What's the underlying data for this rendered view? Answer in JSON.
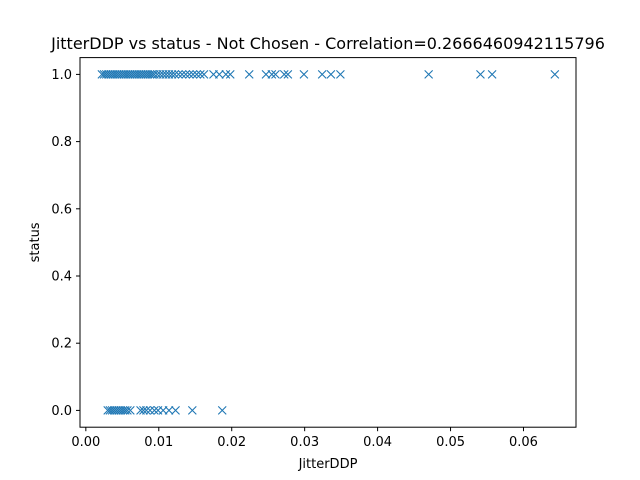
{
  "chart_data": {
    "type": "scatter",
    "title": "JitterDDP vs status - Not Chosen - Correlation=0.2666460942115796",
    "xlabel": "JitterDDP",
    "ylabel": "status",
    "xlim": [
      -0.0008,
      0.0672
    ],
    "ylim": [
      -0.05,
      1.05
    ],
    "xticks": [
      0.0,
      0.01,
      0.02,
      0.03,
      0.04,
      0.05,
      0.06
    ],
    "xtick_labels": [
      "0.00",
      "0.01",
      "0.02",
      "0.03",
      "0.04",
      "0.05",
      "0.06"
    ],
    "yticks": [
      0.0,
      0.2,
      0.4,
      0.6,
      0.8,
      1.0
    ],
    "ytick_labels": [
      "0.0",
      "0.2",
      "0.4",
      "0.6",
      "0.8",
      "1.0"
    ],
    "marker": "x",
    "color": "#1f77b4",
    "grid": false,
    "series": [
      {
        "name": "",
        "points": [
          [
            0.0022,
            1
          ],
          [
            0.0025,
            1
          ],
          [
            0.0028,
            1
          ],
          [
            0.0031,
            1
          ],
          [
            0.0034,
            1
          ],
          [
            0.0037,
            1
          ],
          [
            0.004,
            1
          ],
          [
            0.0043,
            1
          ],
          [
            0.0046,
            1
          ],
          [
            0.0049,
            1
          ],
          [
            0.0052,
            1
          ],
          [
            0.0055,
            1
          ],
          [
            0.0058,
            1
          ],
          [
            0.0061,
            1
          ],
          [
            0.0064,
            1
          ],
          [
            0.0067,
            1
          ],
          [
            0.007,
            1
          ],
          [
            0.0073,
            1
          ],
          [
            0.0076,
            1
          ],
          [
            0.0079,
            1
          ],
          [
            0.0082,
            1
          ],
          [
            0.0085,
            1
          ],
          [
            0.0088,
            1
          ],
          [
            0.0091,
            1
          ],
          [
            0.0094,
            1
          ],
          [
            0.0098,
            1
          ],
          [
            0.0102,
            1
          ],
          [
            0.0106,
            1
          ],
          [
            0.011,
            1
          ],
          [
            0.0114,
            1
          ],
          [
            0.0118,
            1
          ],
          [
            0.0122,
            1
          ],
          [
            0.0127,
            1
          ],
          [
            0.0132,
            1
          ],
          [
            0.0137,
            1
          ],
          [
            0.0142,
            1
          ],
          [
            0.0147,
            1
          ],
          [
            0.0152,
            1
          ],
          [
            0.0157,
            1
          ],
          [
            0.0162,
            1
          ],
          [
            0.0175,
            1
          ],
          [
            0.0183,
            1
          ],
          [
            0.0192,
            1
          ],
          [
            0.0198,
            1
          ],
          [
            0.0224,
            1
          ],
          [
            0.0247,
            1
          ],
          [
            0.0255,
            1
          ],
          [
            0.026,
            1
          ],
          [
            0.0272,
            1
          ],
          [
            0.0277,
            1
          ],
          [
            0.0299,
            1
          ],
          [
            0.0324,
            1
          ],
          [
            0.0336,
            1
          ],
          [
            0.0349,
            1
          ],
          [
            0.047,
            1
          ],
          [
            0.0541,
            1
          ],
          [
            0.0557,
            1
          ],
          [
            0.0643,
            1
          ],
          [
            0.003,
            0
          ],
          [
            0.0033,
            0
          ],
          [
            0.0036,
            0
          ],
          [
            0.0039,
            0
          ],
          [
            0.0042,
            0
          ],
          [
            0.0045,
            0
          ],
          [
            0.0048,
            0
          ],
          [
            0.0051,
            0
          ],
          [
            0.0054,
            0
          ],
          [
            0.0057,
            0
          ],
          [
            0.0061,
            0
          ],
          [
            0.0075,
            0
          ],
          [
            0.0079,
            0
          ],
          [
            0.0083,
            0
          ],
          [
            0.0088,
            0
          ],
          [
            0.0094,
            0
          ],
          [
            0.0099,
            0
          ],
          [
            0.0106,
            0
          ],
          [
            0.0114,
            0
          ],
          [
            0.0123,
            0
          ],
          [
            0.0146,
            0
          ],
          [
            0.0187,
            0
          ]
        ]
      }
    ]
  }
}
